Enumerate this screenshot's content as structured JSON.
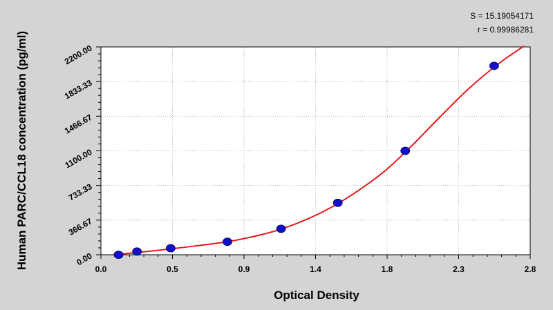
{
  "chart_data": {
    "type": "scatter",
    "xlabel": "Optical Density",
    "ylabel": "Human PARC/CCL18 concentration (pg/ml)",
    "xlim": [
      0,
      2.8
    ],
    "ylim": [
      0,
      2200
    ],
    "x_ticks": [
      "0.0",
      "0.5",
      "0.9",
      "1.4",
      "1.8",
      "2.3",
      "2.8"
    ],
    "y_ticks": [
      "0.00",
      "366.67",
      "733.33",
      "1100.00",
      "1466.67",
      "1833.33",
      "2200.00"
    ],
    "grid": true,
    "stats": {
      "s": "S = 15.19054171",
      "r": "r = 0.99986281"
    },
    "series": [
      {
        "type": "scatter",
        "points": [
          {
            "x": 0.115,
            "y": 0
          },
          {
            "x": 0.235,
            "y": 34.4
          },
          {
            "x": 0.455,
            "y": 68.8
          },
          {
            "x": 0.825,
            "y": 137.5
          },
          {
            "x": 1.175,
            "y": 275
          },
          {
            "x": 1.545,
            "y": 550
          },
          {
            "x": 1.985,
            "y": 1100
          },
          {
            "x": 2.565,
            "y": 2000
          }
        ]
      },
      {
        "type": "line",
        "points": [
          {
            "x": 0.08,
            "y": 0
          },
          {
            "x": 0.3,
            "y": 35
          },
          {
            "x": 0.6,
            "y": 90
          },
          {
            "x": 0.9,
            "y": 160
          },
          {
            "x": 1.2,
            "y": 285
          },
          {
            "x": 1.5,
            "y": 500
          },
          {
            "x": 1.8,
            "y": 820
          },
          {
            "x": 2.0,
            "y": 1110
          },
          {
            "x": 2.2,
            "y": 1440
          },
          {
            "x": 2.4,
            "y": 1760
          },
          {
            "x": 2.6,
            "y": 2030
          },
          {
            "x": 2.76,
            "y": 2210
          }
        ]
      }
    ]
  },
  "colors": {
    "curve": "#e31a1c",
    "point": "#1010c8",
    "grid": "#b8b8b8",
    "plot_bg": "#ffffff",
    "background": "#d4d4d4"
  }
}
